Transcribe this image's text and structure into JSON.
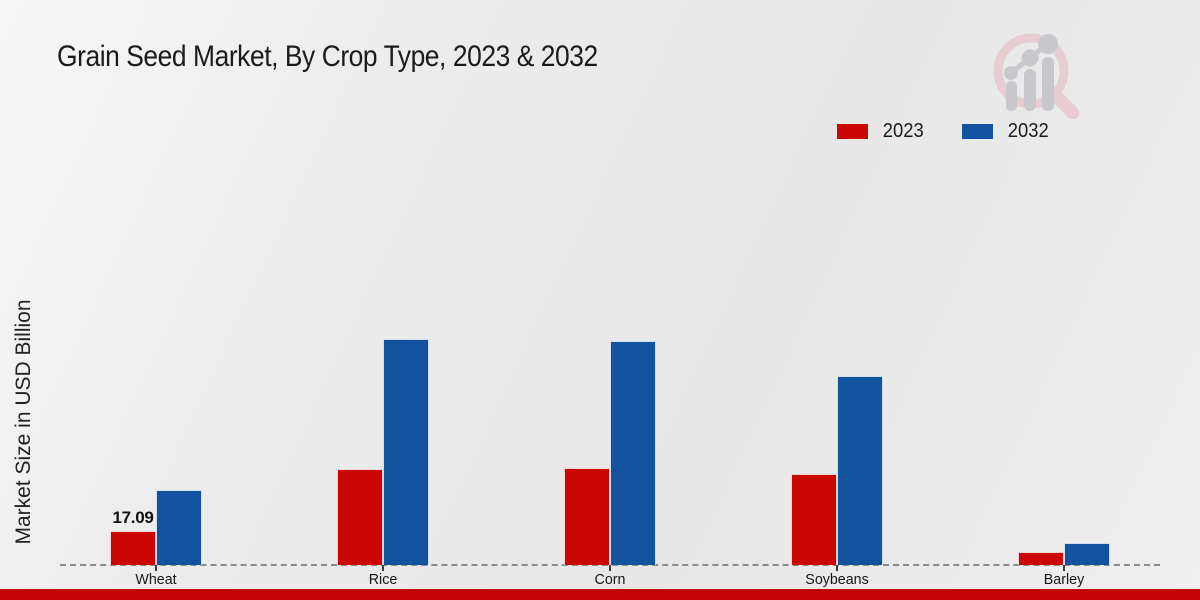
{
  "header": {
    "title": "Grain Seed Market, By Crop Type, 2023 & 2032"
  },
  "y_axis": {
    "label": "Market Size in USD Billion"
  },
  "chart_data": {
    "type": "bar",
    "title": "Grain Seed Market, By Crop Type, 2023 & 2032",
    "xlabel": "",
    "ylabel": "Market Size in USD Billion",
    "categories": [
      "Wheat",
      "Rice",
      "Corn",
      "Soybeans",
      "Barley"
    ],
    "series": [
      {
        "name": "2023",
        "color": "#cc0505",
        "values": [
          17.09,
          47.8,
          48.3,
          45.3,
          6.2
        ]
      },
      {
        "name": "2032",
        "color": "#12539f",
        "values": [
          37.4,
          112.2,
          111.2,
          93.9,
          11.1
        ]
      }
    ],
    "ylim": [
      0,
      120
    ],
    "grid": false,
    "y_axis_ticks_visible": false,
    "baseline_style": "dashed",
    "legend_position": "top-right",
    "data_labels": [
      {
        "category": "Wheat",
        "series": "2023",
        "text": "17.09"
      }
    ]
  },
  "branding": {
    "logo": "magnifier-bar-chart-logo",
    "logo_ring_color": "#e7cdd1",
    "logo_glyph_color": "#c7c7cc"
  },
  "footer": {
    "strip_color": "#c40404"
  }
}
